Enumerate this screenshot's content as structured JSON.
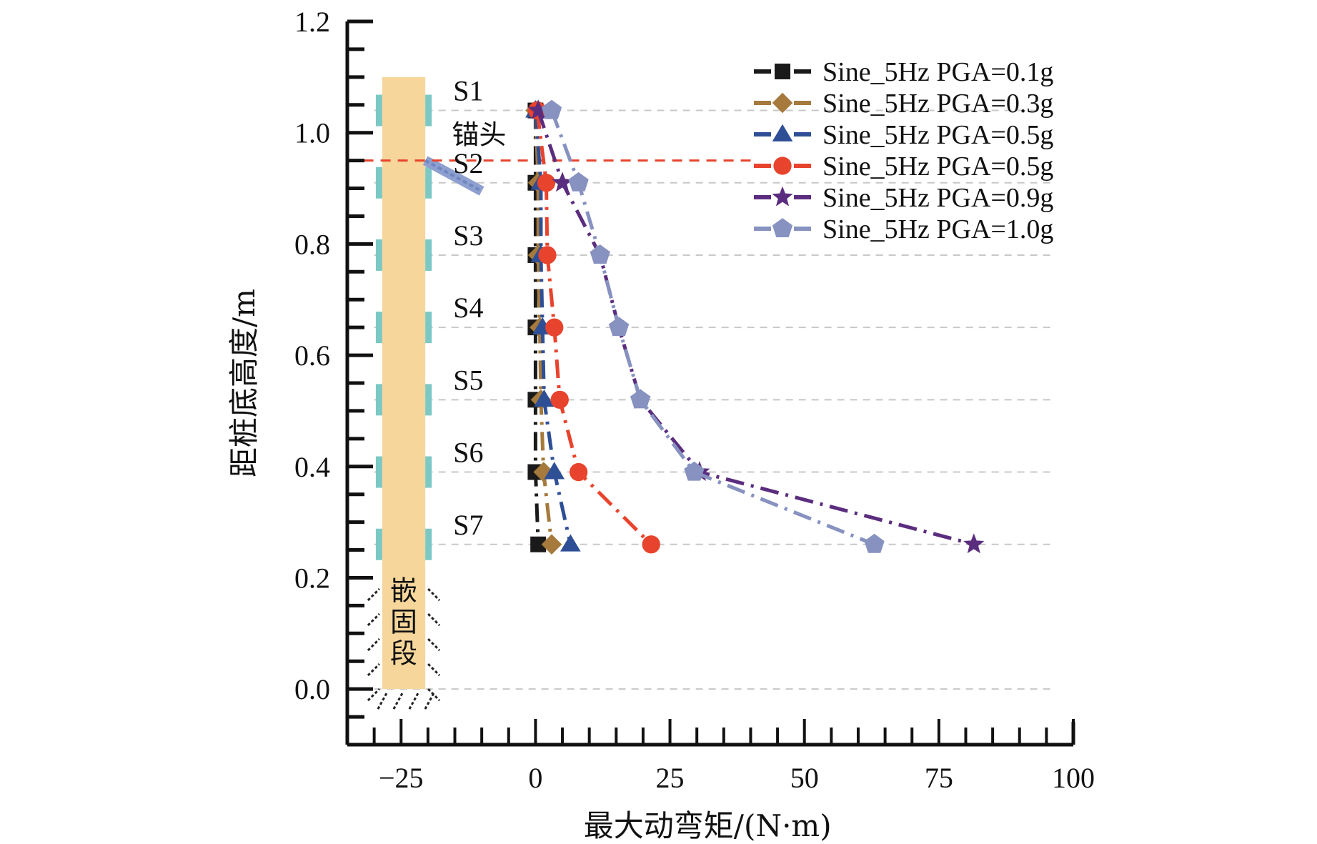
{
  "chart_data": {
    "type": "line",
    "title": "",
    "xlabel": "最大动弯矩/(N·m)",
    "ylabel": "距桩底高度/m",
    "xlim": [
      -35,
      100
    ],
    "ylim": [
      -0.1,
      1.2
    ],
    "xticks": [
      -25,
      0,
      25,
      50,
      75,
      100
    ],
    "xtick_labels": [
      "−25",
      "0",
      "25",
      "50",
      "75",
      "100"
    ],
    "yticks": [
      0.0,
      0.2,
      0.4,
      0.6,
      0.8,
      1.0,
      1.2
    ],
    "ytick_labels": [
      "0.0",
      "0.2",
      "0.4",
      "0.6",
      "0.8",
      "1.0",
      "1.2"
    ],
    "grid": "horizontal dashed lines at sensor heights",
    "legend_position": "top-right",
    "sensor_heights": [
      1.04,
      0.91,
      0.78,
      0.65,
      0.52,
      0.39,
      0.26
    ],
    "sensor_labels": [
      "S1",
      "S2",
      "S3",
      "S4",
      "S5",
      "S6",
      "S7"
    ],
    "anchor_head_height": 0.95,
    "series": [
      {
        "name": "Sine_5Hz PGA=0.1g",
        "color": "#1a1a1a",
        "marker": "square",
        "x": [
          0.0,
          0.0,
          0.0,
          0.0,
          0.0,
          0.0,
          0.5
        ]
      },
      {
        "name": "Sine_5Hz PGA=0.3g",
        "color": "#a57a3c",
        "marker": "diamond",
        "x": [
          0.0,
          0.5,
          0.5,
          0.8,
          1.0,
          1.5,
          3.0
        ]
      },
      {
        "name": "Sine_5Hz PGA=0.5g",
        "color": "#2e4f96",
        "marker": "triangle",
        "x": [
          0.0,
          1.0,
          1.0,
          1.3,
          1.6,
          3.5,
          6.5
        ]
      },
      {
        "name": "Sine_5Hz PGA=0.5g",
        "color": "#e8432c",
        "marker": "circle",
        "x": [
          0.3,
          2.0,
          2.2,
          3.5,
          4.5,
          8.0,
          21.5
        ]
      },
      {
        "name": "Sine_5Hz PGA=0.9g",
        "color": "#5b2d7e",
        "marker": "star",
        "x": [
          0.5,
          5.0,
          12.0,
          15.5,
          19.5,
          30.5,
          81.5
        ]
      },
      {
        "name": "Sine_5Hz PGA=1.0g",
        "color": "#8792c0",
        "marker": "pentagon",
        "x": [
          3.0,
          8.0,
          12.0,
          15.5,
          19.5,
          29.5,
          63.0
        ]
      }
    ],
    "annotations": {
      "anchor_head": "锚头",
      "embedded_segment": [
        "嵌",
        "固",
        "段"
      ]
    }
  }
}
